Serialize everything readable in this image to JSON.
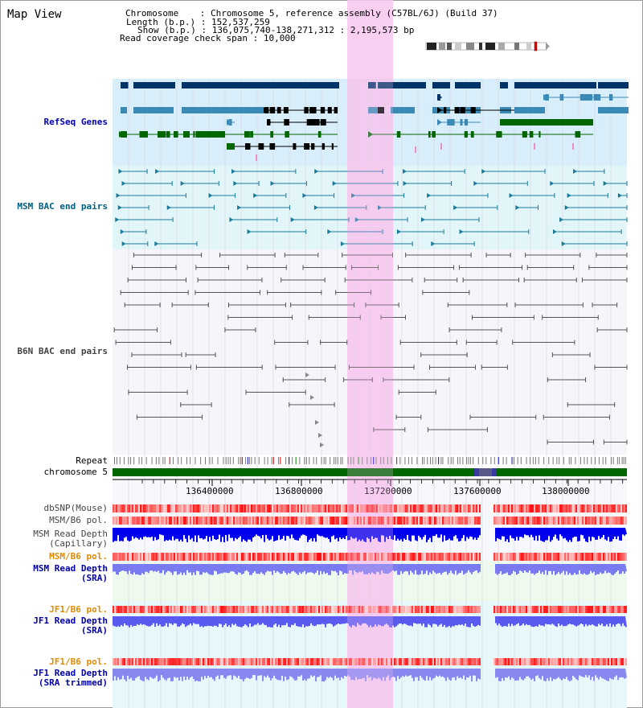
{
  "title": "Map View",
  "info": {
    "chromosome_label": "Chromosome",
    "chromosome_value": "Chromosome 5, reference assembly (C57BL/6J) (Build 37)",
    "length_label": "Length (b.p.)",
    "length_value": "152,537,259",
    "show_label": "Show (b.p.)",
    "show_value": "136,075,740-138,271,312 : 2,195,573 bp",
    "coverage_label": "Read coverage check span",
    "coverage_value": "10,000"
  },
  "tracks": {
    "refseq": "RefSeq Genes",
    "msm_bac": "MSM BAC end pairs",
    "b6n_bac": "B6N BAC end pairs",
    "repeat": "Repeat",
    "chromosome": "chromosome 5",
    "dbsnp": "dbSNP(Mouse)",
    "msm_b6_pol": "MSM/B6 pol.",
    "msm_depth_cap_1": "MSM Read Depth",
    "msm_depth_cap_2": "(Capillary)",
    "msm_b6_pol_2": "MSM/B6 pol.",
    "msm_depth_sra_1": "MSM Read Depth",
    "msm_depth_sra_2": "(SRA)",
    "jf1_b6_pol": "JF1/B6 pol.",
    "jf1_depth_sra_1": "JF1 Read Depth",
    "jf1_depth_sra_2": "(SRA)",
    "jf1_b6_pol_2": "JF1/B6 pol.",
    "jf1_depth_trim_1": "JF1 Read Depth",
    "jf1_depth_trim_2": "(SRA trimmed)"
  },
  "axis": {
    "ticks": [
      "136400000",
      "136800000",
      "137200000",
      "137600000",
      "138000000"
    ]
  },
  "colors": {
    "label_blue": "#0000aa",
    "label_teal": "#006080",
    "label_orange": "#e08a00",
    "label_gray": "#333333",
    "highlight": "#f7c7ee",
    "refseq_bg": "#d8eefa",
    "msm_bg": "#e2f6fa",
    "gene_dark": "#003366",
    "gene_mid": "#3b8ab5",
    "gene_green": "#006600",
    "chromosome_green": "#006600"
  }
}
